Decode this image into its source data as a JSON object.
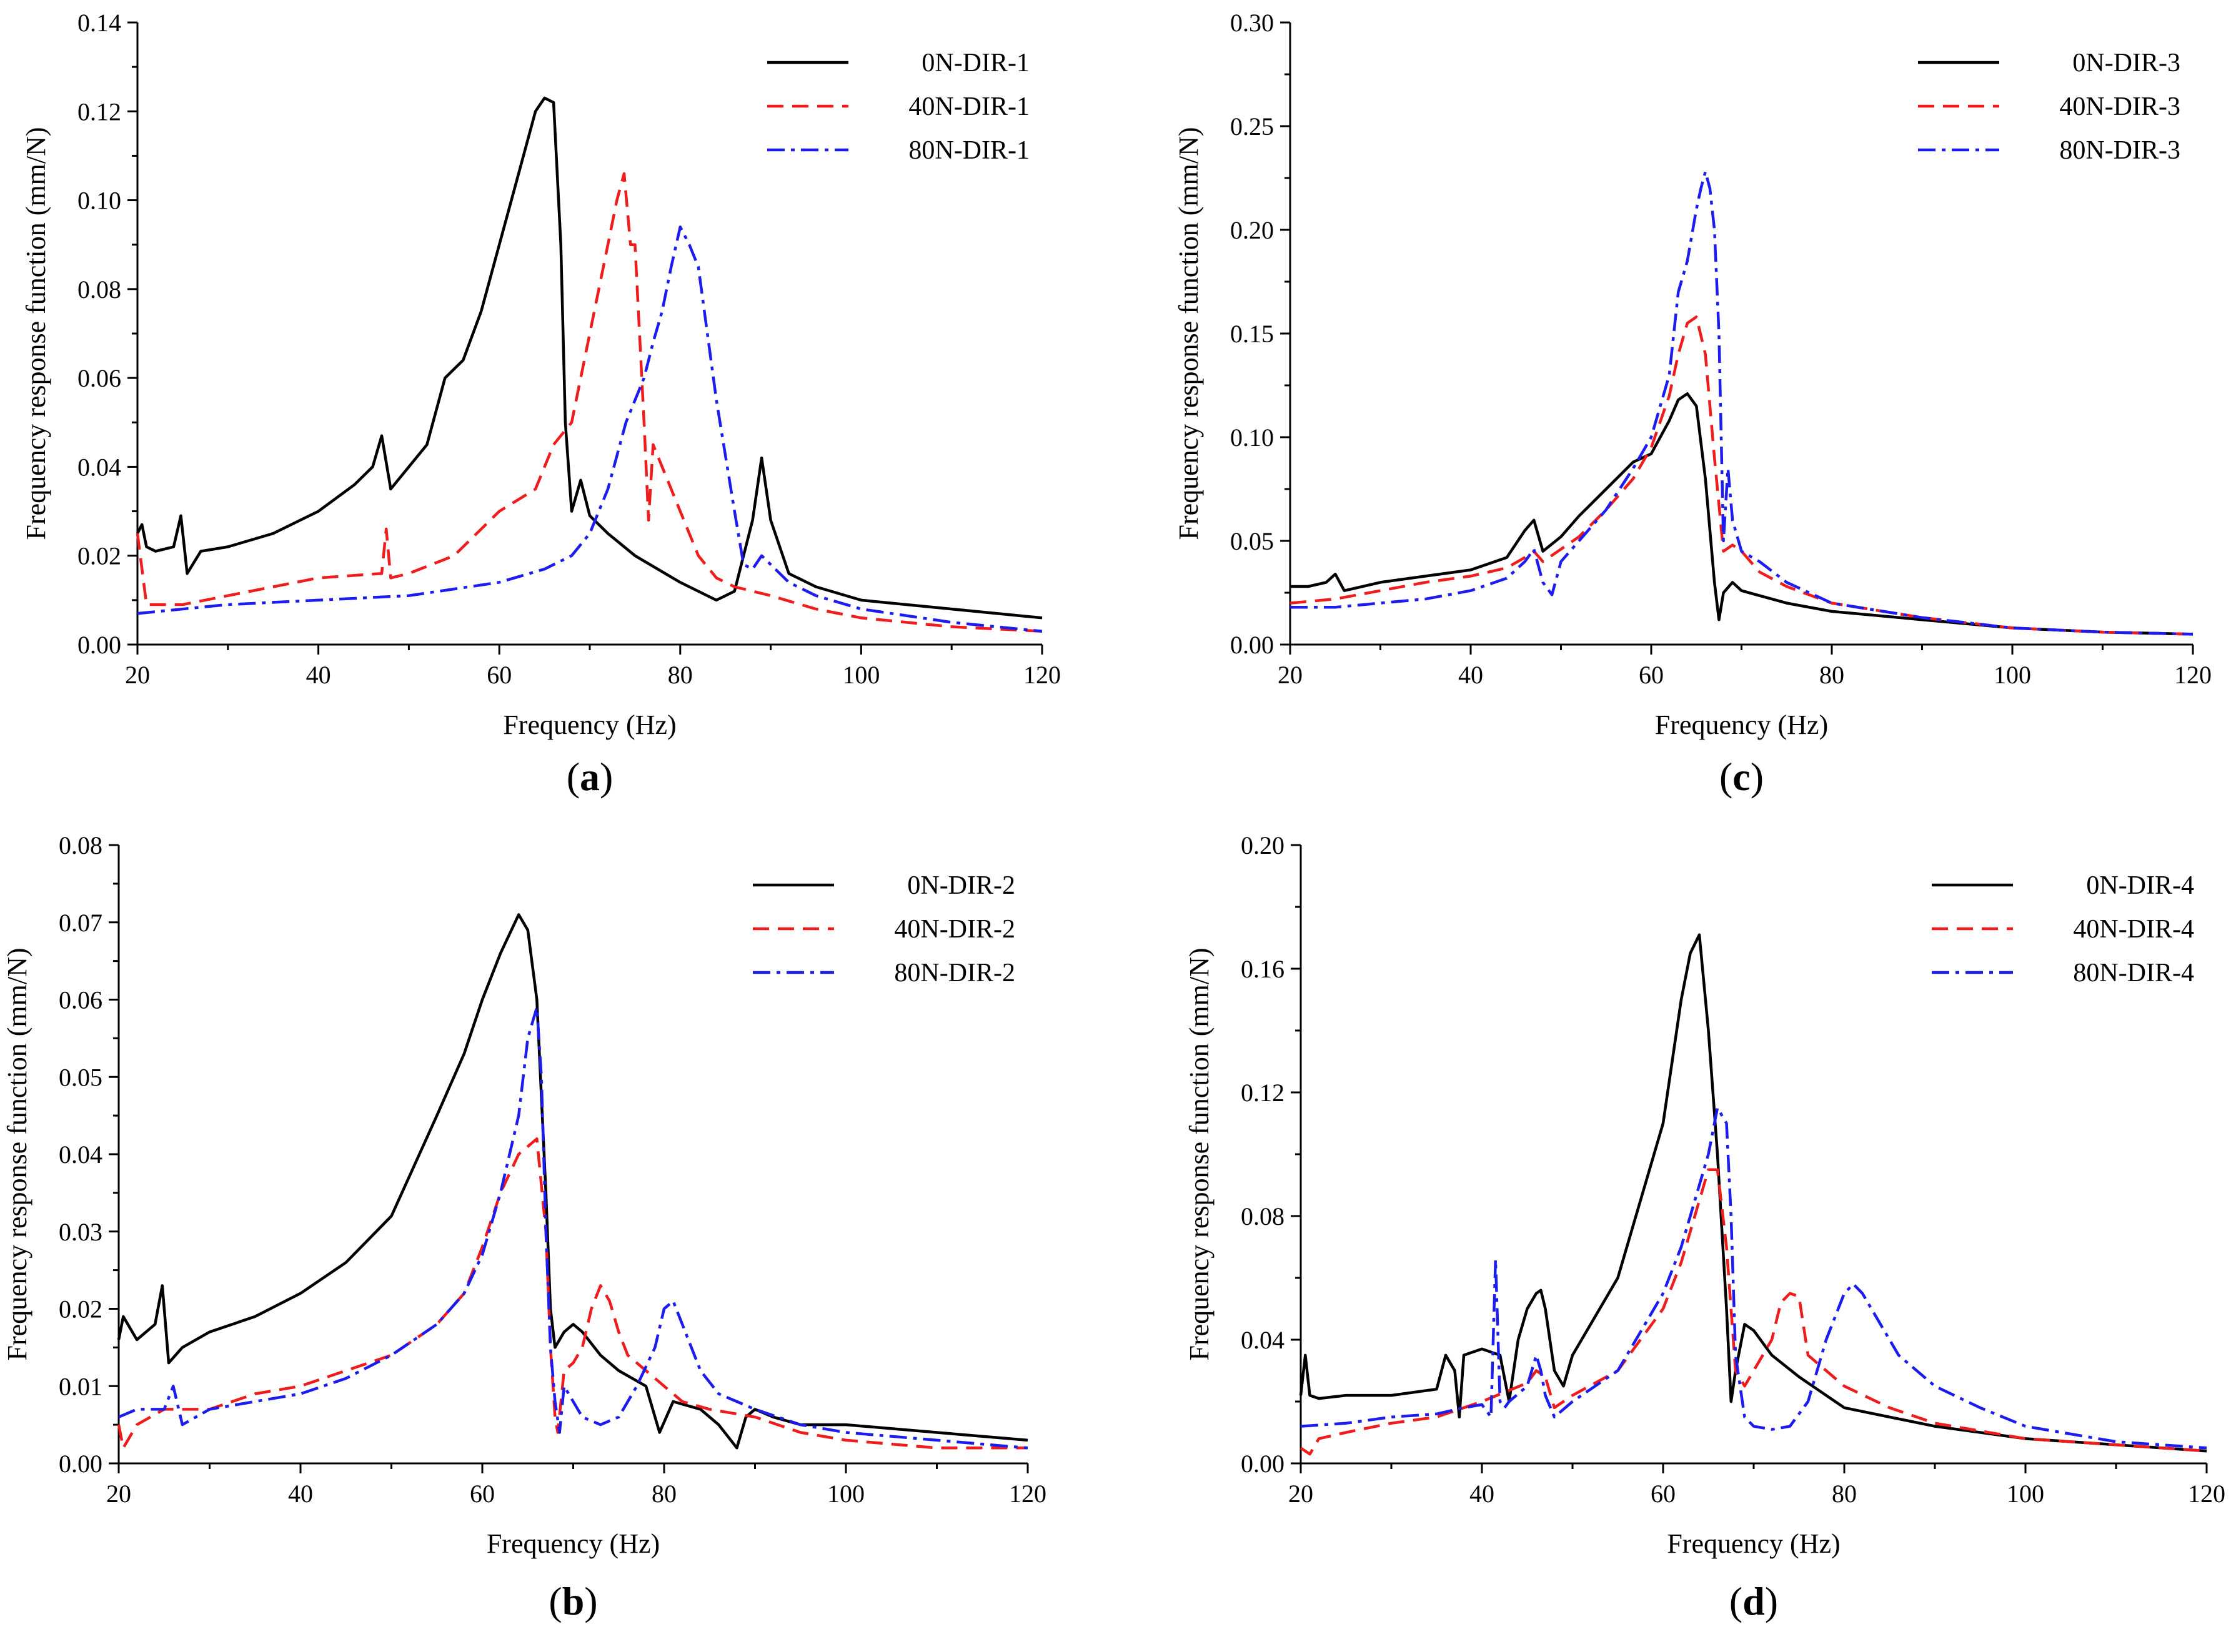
{
  "chart_data": [
    {
      "type": "line",
      "panel_label": "a",
      "xlabel": "Frequency (Hz)",
      "ylabel": "Frequency response function (mm/N)",
      "xlim": [
        20,
        120
      ],
      "ylim": [
        0,
        0.14
      ],
      "xticks": [
        "20",
        "40",
        "60",
        "80",
        "100",
        "120"
      ],
      "yticks": [
        "0.00",
        "0.02",
        "0.04",
        "0.06",
        "0.08",
        "0.10",
        "0.12",
        "0.14"
      ],
      "legend_position": "top-right",
      "series": [
        {
          "name": "0N-DIR-1",
          "color": "#000000",
          "dash": "solid",
          "x": [
            20,
            20.5,
            21,
            22,
            24,
            24.8,
            25.5,
            27,
            30,
            35,
            40,
            44,
            46,
            47,
            48,
            50,
            52,
            54,
            56,
            58,
            60,
            62,
            64,
            65,
            66,
            66.8,
            67.3,
            68,
            69,
            70,
            72,
            75,
            80,
            84,
            86,
            88,
            89,
            90,
            92,
            95,
            100,
            110,
            120
          ],
          "y": [
            0.025,
            0.027,
            0.022,
            0.021,
            0.022,
            0.029,
            0.016,
            0.021,
            0.022,
            0.025,
            0.03,
            0.036,
            0.04,
            0.047,
            0.035,
            0.04,
            0.045,
            0.06,
            0.064,
            0.075,
            0.09,
            0.105,
            0.12,
            0.123,
            0.122,
            0.09,
            0.05,
            0.03,
            0.037,
            0.029,
            0.025,
            0.02,
            0.014,
            0.01,
            0.012,
            0.028,
            0.042,
            0.028,
            0.016,
            0.013,
            0.01,
            0.008,
            0.006
          ]
        },
        {
          "name": "40N-DIR-1",
          "color": "#ee1c1c",
          "dash": "dashed",
          "x": [
            20,
            21,
            25,
            30,
            40,
            47,
            47.5,
            48,
            50,
            55,
            60,
            64,
            66,
            68,
            70,
            71,
            72,
            73,
            73.8,
            74.5,
            75,
            76,
            76.5,
            77,
            78,
            80,
            82,
            84,
            86,
            88,
            90,
            95,
            100,
            110,
            120
          ],
          "y": [
            0.025,
            0.009,
            0.009,
            0.011,
            0.015,
            0.016,
            0.026,
            0.015,
            0.016,
            0.02,
            0.03,
            0.035,
            0.045,
            0.05,
            0.07,
            0.08,
            0.09,
            0.1,
            0.106,
            0.09,
            0.09,
            0.05,
            0.028,
            0.045,
            0.04,
            0.03,
            0.02,
            0.015,
            0.013,
            0.012,
            0.011,
            0.008,
            0.006,
            0.004,
            0.003
          ]
        },
        {
          "name": "80N-DIR-1",
          "color": "#1c1cee",
          "dash": "dashdot",
          "x": [
            20,
            30,
            40,
            50,
            60,
            65,
            68,
            70,
            72,
            74,
            76,
            77,
            78,
            79,
            80,
            81,
            82,
            84,
            86,
            87,
            88,
            89,
            90,
            92,
            95,
            100,
            110,
            120
          ],
          "y": [
            0.007,
            0.009,
            0.01,
            0.011,
            0.014,
            0.017,
            0.02,
            0.025,
            0.035,
            0.05,
            0.06,
            0.068,
            0.075,
            0.085,
            0.094,
            0.09,
            0.085,
            0.055,
            0.03,
            0.018,
            0.017,
            0.02,
            0.018,
            0.014,
            0.011,
            0.008,
            0.005,
            0.003
          ]
        }
      ]
    },
    {
      "type": "line",
      "panel_label": "b",
      "xlabel": "Frequency (Hz)",
      "ylabel": "Frequency response function (mm/N)",
      "xlim": [
        20,
        120
      ],
      "ylim": [
        0,
        0.08
      ],
      "xticks": [
        "20",
        "40",
        "60",
        "80",
        "100",
        "120"
      ],
      "yticks": [
        "0.00",
        "0.01",
        "0.02",
        "0.03",
        "0.04",
        "0.05",
        "0.06",
        "0.07",
        "0.08"
      ],
      "legend_position": "top-right",
      "series": [
        {
          "name": "0N-DIR-2",
          "color": "#000000",
          "dash": "solid",
          "x": [
            20,
            20.5,
            22,
            24,
            24.8,
            25.5,
            27,
            30,
            35,
            40,
            45,
            50,
            55,
            58,
            60,
            62,
            64,
            65,
            66,
            67,
            67.5,
            68,
            69,
            70,
            71,
            73,
            75,
            78,
            79.5,
            81,
            84,
            86,
            88,
            89,
            90,
            92,
            95,
            100,
            110,
            120
          ],
          "y": [
            0.016,
            0.019,
            0.016,
            0.018,
            0.023,
            0.013,
            0.015,
            0.017,
            0.019,
            0.022,
            0.026,
            0.032,
            0.045,
            0.053,
            0.06,
            0.066,
            0.071,
            0.069,
            0.06,
            0.035,
            0.02,
            0.015,
            0.017,
            0.018,
            0.017,
            0.014,
            0.012,
            0.01,
            0.004,
            0.008,
            0.007,
            0.005,
            0.002,
            0.006,
            0.007,
            0.006,
            0.005,
            0.005,
            0.004,
            0.003
          ]
        },
        {
          "name": "40N-DIR-2",
          "color": "#ee1c1c",
          "dash": "dashed",
          "x": [
            20,
            20.5,
            22,
            25,
            30,
            35,
            40,
            45,
            50,
            55,
            58,
            60,
            62,
            64,
            66,
            67,
            67.5,
            68,
            68.3,
            69,
            70,
            71,
            72,
            73,
            74,
            75,
            76,
            78,
            80,
            82,
            85,
            90,
            95,
            100,
            110,
            120
          ],
          "y": [
            0.005,
            0.002,
            0.005,
            0.007,
            0.007,
            0.009,
            0.01,
            0.012,
            0.014,
            0.018,
            0.022,
            0.028,
            0.035,
            0.04,
            0.042,
            0.03,
            0.015,
            0.006,
            0.004,
            0.012,
            0.013,
            0.015,
            0.02,
            0.023,
            0.021,
            0.017,
            0.014,
            0.012,
            0.01,
            0.008,
            0.007,
            0.006,
            0.004,
            0.003,
            0.002,
            0.002
          ]
        },
        {
          "name": "80N-DIR-2",
          "color": "#1c1cee",
          "dash": "dashdot",
          "x": [
            20,
            22,
            25,
            26,
            27,
            30,
            35,
            40,
            45,
            50,
            55,
            58,
            60,
            62,
            64,
            65,
            66,
            66.5,
            67,
            67.5,
            68,
            68.5,
            69,
            70,
            71,
            73,
            75,
            77,
            79,
            80,
            81,
            82,
            84,
            86,
            88,
            90,
            95,
            100,
            110,
            120
          ],
          "y": [
            0.006,
            0.007,
            0.007,
            0.01,
            0.005,
            0.007,
            0.008,
            0.009,
            0.011,
            0.014,
            0.018,
            0.022,
            0.027,
            0.035,
            0.045,
            0.055,
            0.059,
            0.05,
            0.03,
            0.015,
            0.008,
            0.004,
            0.01,
            0.008,
            0.006,
            0.005,
            0.006,
            0.01,
            0.015,
            0.02,
            0.021,
            0.018,
            0.012,
            0.009,
            0.008,
            0.007,
            0.005,
            0.004,
            0.003,
            0.002
          ]
        }
      ]
    },
    {
      "type": "line",
      "panel_label": "c",
      "xlabel": "Frequency (Hz)",
      "ylabel": "Frequency response function (mm/N)",
      "xlim": [
        20,
        120
      ],
      "ylim": [
        0,
        0.3
      ],
      "xticks": [
        "20",
        "40",
        "60",
        "80",
        "100",
        "120"
      ],
      "yticks": [
        "0.00",
        "0.05",
        "0.10",
        "0.15",
        "0.20",
        "0.25",
        "0.30"
      ],
      "legend_position": "top-right",
      "series": [
        {
          "name": "0N-DIR-3",
          "color": "#000000",
          "dash": "solid",
          "x": [
            20,
            22,
            24,
            25,
            26,
            30,
            35,
            40,
            44,
            46,
            47,
            48,
            50,
            52,
            55,
            58,
            60,
            62,
            63,
            64,
            65,
            66,
            67,
            67.5,
            68,
            69,
            70,
            75,
            80,
            90,
            100,
            110,
            120
          ],
          "y": [
            0.028,
            0.028,
            0.03,
            0.034,
            0.026,
            0.03,
            0.033,
            0.036,
            0.042,
            0.055,
            0.06,
            0.045,
            0.052,
            0.062,
            0.075,
            0.088,
            0.092,
            0.108,
            0.118,
            0.121,
            0.115,
            0.08,
            0.03,
            0.012,
            0.025,
            0.03,
            0.026,
            0.02,
            0.016,
            0.012,
            0.008,
            0.006,
            0.005
          ]
        },
        {
          "name": "40N-DIR-3",
          "color": "#ee1c1c",
          "dash": "dashed",
          "x": [
            20,
            25,
            30,
            35,
            40,
            44,
            46,
            47,
            48,
            50,
            52,
            55,
            58,
            60,
            62,
            63,
            64,
            65,
            66,
            67,
            68,
            69,
            70,
            72,
            75,
            80,
            90,
            100,
            110,
            120
          ],
          "y": [
            0.02,
            0.022,
            0.026,
            0.03,
            0.033,
            0.037,
            0.042,
            0.045,
            0.04,
            0.046,
            0.052,
            0.065,
            0.08,
            0.095,
            0.12,
            0.14,
            0.155,
            0.158,
            0.14,
            0.09,
            0.045,
            0.048,
            0.045,
            0.035,
            0.028,
            0.02,
            0.013,
            0.008,
            0.006,
            0.005
          ]
        },
        {
          "name": "80N-DIR-3",
          "color": "#1c1cee",
          "dash": "dashdot",
          "x": [
            20,
            25,
            30,
            35,
            40,
            44,
            46,
            47,
            48,
            49,
            50,
            52,
            55,
            58,
            60,
            62,
            63,
            64,
            65,
            65.5,
            66,
            66.5,
            67,
            67.5,
            68,
            68.5,
            69,
            70,
            72,
            75,
            80,
            90,
            100,
            110,
            120
          ],
          "y": [
            0.018,
            0.018,
            0.02,
            0.022,
            0.026,
            0.032,
            0.04,
            0.046,
            0.03,
            0.024,
            0.04,
            0.05,
            0.065,
            0.085,
            0.1,
            0.13,
            0.17,
            0.185,
            0.21,
            0.22,
            0.228,
            0.22,
            0.2,
            0.15,
            0.05,
            0.085,
            0.06,
            0.045,
            0.04,
            0.03,
            0.02,
            0.013,
            0.008,
            0.006,
            0.005
          ]
        }
      ]
    },
    {
      "type": "line",
      "panel_label": "d",
      "xlabel": "Frequency (Hz)",
      "ylabel": "Frequency response function (mm/N)",
      "xlim": [
        20,
        120
      ],
      "ylim": [
        0,
        0.2
      ],
      "xticks": [
        "20",
        "40",
        "60",
        "80",
        "100",
        "120"
      ],
      "yticks": [
        "0.00",
        "0.04",
        "0.08",
        "0.12",
        "0.16",
        "0.20"
      ],
      "legend_position": "top-right",
      "series": [
        {
          "name": "0N-DIR-4",
          "color": "#000000",
          "dash": "solid",
          "x": [
            20,
            20.5,
            21,
            22,
            25,
            30,
            35,
            36,
            37,
            37.5,
            38,
            40,
            42,
            43,
            44,
            45,
            46,
            46.5,
            47,
            48,
            49,
            50,
            52,
            55,
            58,
            60,
            61,
            62,
            63,
            64,
            65,
            66,
            67,
            67.5,
            68,
            69,
            70,
            72,
            75,
            80,
            90,
            100,
            110,
            120
          ],
          "y": [
            0.022,
            0.035,
            0.022,
            0.021,
            0.022,
            0.022,
            0.024,
            0.035,
            0.03,
            0.015,
            0.035,
            0.037,
            0.035,
            0.02,
            0.04,
            0.05,
            0.055,
            0.056,
            0.05,
            0.03,
            0.025,
            0.035,
            0.045,
            0.06,
            0.09,
            0.11,
            0.13,
            0.15,
            0.165,
            0.171,
            0.14,
            0.1,
            0.05,
            0.02,
            0.03,
            0.045,
            0.043,
            0.035,
            0.028,
            0.018,
            0.012,
            0.008,
            0.006,
            0.004
          ]
        },
        {
          "name": "40N-DIR-4",
          "color": "#ee1c1c",
          "dash": "dashed",
          "x": [
            20,
            21,
            22,
            25,
            30,
            35,
            40,
            45,
            46,
            47,
            48,
            50,
            55,
            60,
            62,
            64,
            65,
            66,
            67,
            68,
            69,
            70,
            71,
            72,
            73,
            74,
            75,
            76,
            78,
            80,
            85,
            90,
            100,
            110,
            120
          ],
          "y": [
            0.005,
            0.003,
            0.008,
            0.01,
            0.013,
            0.015,
            0.02,
            0.026,
            0.03,
            0.028,
            0.018,
            0.022,
            0.03,
            0.05,
            0.065,
            0.085,
            0.095,
            0.095,
            0.07,
            0.03,
            0.025,
            0.03,
            0.035,
            0.04,
            0.052,
            0.055,
            0.054,
            0.035,
            0.03,
            0.025,
            0.018,
            0.013,
            0.008,
            0.006,
            0.004
          ]
        },
        {
          "name": "80N-DIR-4",
          "color": "#1c1cee",
          "dash": "dashdot",
          "x": [
            20,
            25,
            30,
            35,
            38,
            40,
            41,
            41.5,
            42,
            42.5,
            43,
            45,
            46,
            46.5,
            47,
            48,
            50,
            55,
            60,
            62,
            64,
            65,
            66,
            67,
            67.5,
            68,
            69,
            70,
            72,
            74,
            76,
            78,
            80,
            81,
            82,
            84,
            86,
            90,
            95,
            100,
            110,
            120
          ],
          "y": [
            0.012,
            0.013,
            0.015,
            0.016,
            0.018,
            0.019,
            0.015,
            0.066,
            0.02,
            0.018,
            0.02,
            0.025,
            0.035,
            0.03,
            0.022,
            0.015,
            0.02,
            0.03,
            0.055,
            0.07,
            0.09,
            0.1,
            0.115,
            0.11,
            0.08,
            0.035,
            0.015,
            0.012,
            0.011,
            0.012,
            0.02,
            0.04,
            0.055,
            0.058,
            0.055,
            0.045,
            0.035,
            0.025,
            0.018,
            0.012,
            0.007,
            0.005
          ]
        }
      ]
    }
  ]
}
